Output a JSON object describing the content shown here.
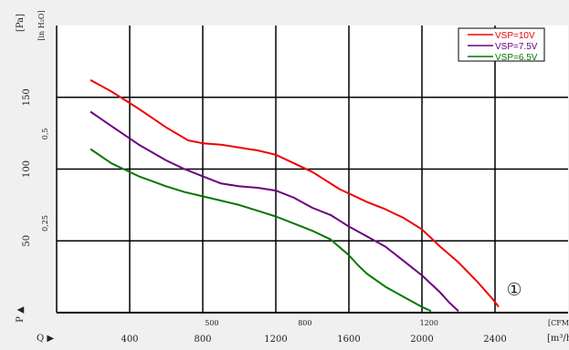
{
  "chart_data": {
    "type": "line",
    "axis_labels": {
      "pa": "[Pa]",
      "inh2o": "[in H₂O]",
      "p": "P ▲",
      "q": "Q ▶",
      "cfm": "[CFM]",
      "m3h": "[m³/h]"
    },
    "x_m3h": {
      "range": [
        0,
        2800
      ],
      "ticks": [
        400,
        800,
        1200,
        1600,
        2000,
        2400
      ],
      "labels": [
        "400",
        "800",
        "1200",
        "1600",
        "2000",
        "2400"
      ]
    },
    "x_cfm": {
      "ticks": [
        500,
        800,
        1200
      ],
      "labels": [
        "500",
        "800",
        "1200"
      ]
    },
    "y_pa": {
      "range": [
        0,
        200
      ],
      "ticks": [
        50,
        100,
        150
      ],
      "labels": [
        "50",
        "100",
        "150"
      ]
    },
    "y_inh2o": {
      "ticks": [
        0.25,
        0.5
      ],
      "labels": [
        "0,25",
        "0,5"
      ]
    },
    "grid": true,
    "legend_position": "top-right",
    "annotation": "①",
    "series": [
      {
        "name": "VSP=10V",
        "color": "#ee0000",
        "x": [
          185,
          300,
          450,
          600,
          720,
          800,
          900,
          1000,
          1050,
          1100,
          1200,
          1300,
          1400,
          1550,
          1700,
          1800,
          1900,
          2000,
          2100,
          2200,
          2300,
          2390,
          2420
        ],
        "y": [
          162,
          154,
          142,
          129,
          120,
          118,
          117,
          115,
          114,
          113,
          110,
          104,
          98,
          86,
          77,
          72,
          66,
          58,
          46,
          35,
          22,
          9,
          4
        ]
      },
      {
        "name": "VSP=7.5V",
        "color": "#6a0080",
        "x": [
          185,
          300,
          450,
          600,
          700,
          800,
          900,
          1000,
          1100,
          1200,
          1300,
          1400,
          1500,
          1600,
          1700,
          1800,
          1900,
          2000,
          2100,
          2150,
          2200
        ],
        "y": [
          140,
          130,
          117,
          106,
          100,
          95,
          90,
          88,
          87,
          85,
          80,
          73,
          68,
          60,
          53,
          46,
          36,
          26,
          14,
          7,
          1
        ]
      },
      {
        "name": "VSP=6.5V",
        "color": "#007700",
        "x": [
          185,
          300,
          450,
          600,
          700,
          800,
          900,
          1000,
          1100,
          1200,
          1300,
          1400,
          1500,
          1600,
          1650,
          1700,
          1800,
          1900,
          2000,
          2050
        ],
        "y": [
          114,
          104,
          95,
          88,
          84,
          81,
          78,
          75,
          71,
          67,
          62,
          57,
          51,
          40,
          33,
          27,
          18,
          11,
          4,
          1
        ]
      }
    ]
  }
}
